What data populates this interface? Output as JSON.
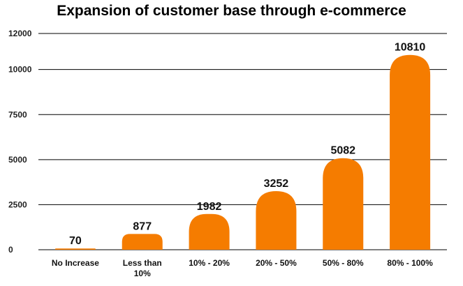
{
  "chart_data": {
    "type": "bar",
    "title": "Expansion of customer base through e-commerce",
    "xlabel": "",
    "ylabel": "",
    "categories": [
      [
        "No Increase"
      ],
      [
        "Less than",
        "10%"
      ],
      [
        "10% - 20%"
      ],
      [
        "20% - 50%"
      ],
      [
        "50% - 80%"
      ],
      [
        "80% - 100%"
      ]
    ],
    "values": [
      70,
      877,
      1982,
      3252,
      5082,
      10810
    ],
    "data_labels": [
      "70",
      "877",
      "1982",
      "3252",
      "5082",
      "10810"
    ],
    "yticks": [
      0,
      2500,
      5000,
      7500,
      10000,
      12000
    ],
    "ylim": [
      0,
      12000
    ],
    "grid": true,
    "legend": "none",
    "colors": {
      "bar": "#F57C00",
      "grid": "#000000",
      "text": "#111111"
    }
  }
}
